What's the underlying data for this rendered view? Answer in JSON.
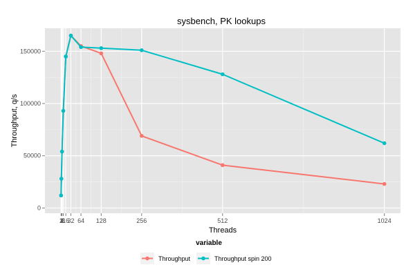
{
  "chart_data": {
    "type": "line",
    "title": "sysbench, PK lookups",
    "xlabel": "Threads",
    "ylabel": "Throughput, q/s",
    "x": [
      1,
      2,
      4,
      8,
      16,
      32,
      64,
      128,
      256,
      512,
      1024
    ],
    "xticks": [
      1,
      2,
      4,
      8,
      16,
      32,
      64,
      128,
      256,
      512,
      1024
    ],
    "xlim": [
      -50,
      1075
    ],
    "yticks": [
      0,
      50000,
      100000,
      150000
    ],
    "ylim": [
      -5000,
      172000
    ],
    "grid": true,
    "legend": {
      "title": "variable",
      "placement": "bottom"
    },
    "series": [
      {
        "name": "Throughput",
        "color": "#f8766d",
        "values": [
          12000,
          28000,
          54000,
          93000,
          145000,
          165000,
          155000,
          148000,
          69000,
          41000,
          23000
        ]
      },
      {
        "name": "Throughput spin 200",
        "color": "#00bfc4",
        "values": [
          12000,
          28000,
          54000,
          93000,
          145000,
          165000,
          154000,
          153000,
          151000,
          128000,
          62000
        ]
      }
    ]
  }
}
